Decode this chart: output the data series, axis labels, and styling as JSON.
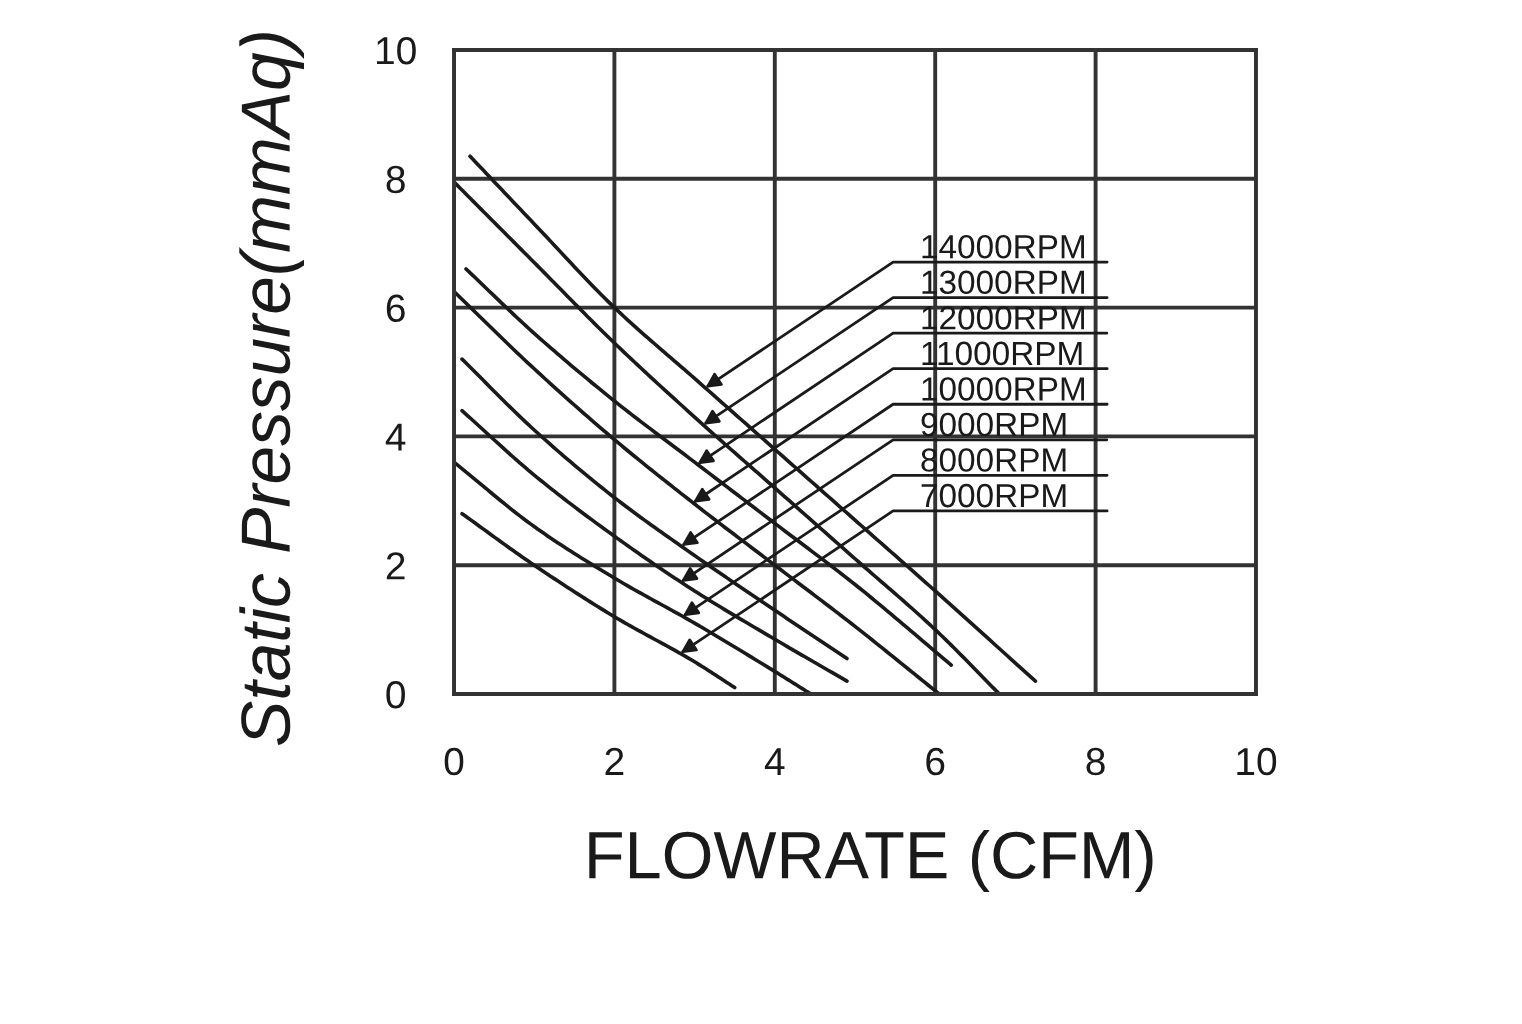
{
  "chart_data": {
    "type": "line",
    "xlabel": "FLOWRATE (CFM)",
    "ylabel": "Static Pressure(mmAq)",
    "xlim": [
      0,
      10
    ],
    "ylim": [
      0,
      10
    ],
    "xticks": [
      0,
      2,
      4,
      6,
      8,
      10
    ],
    "yticks": [
      0,
      2,
      4,
      6,
      8,
      10
    ],
    "grid": true,
    "line_style": "solid",
    "series": [
      {
        "name": "14000RPM",
        "color": "#1a1a1a",
        "x": [
          0.2,
          1,
          2,
          3,
          4,
          5,
          6,
          7.25
        ],
        "values": [
          8.35,
          7.3,
          6.0,
          4.9,
          3.8,
          2.7,
          1.6,
          0.2
        ]
      },
      {
        "name": "13000RPM",
        "color": "#1a1a1a",
        "x": [
          0,
          1,
          2,
          3,
          4,
          5,
          6,
          6.8
        ],
        "values": [
          7.95,
          6.7,
          5.45,
          4.3,
          3.2,
          2.1,
          1.0,
          0
        ]
      },
      {
        "name": "12000RPM",
        "color": "#1a1a1a",
        "x": [
          0.15,
          1,
          2,
          3,
          4,
          5,
          6.2
        ],
        "values": [
          6.6,
          5.6,
          4.55,
          3.6,
          2.65,
          1.7,
          0.45
        ]
      },
      {
        "name": "11000RPM",
        "color": "#1a1a1a",
        "x": [
          0,
          1,
          2,
          3,
          4,
          5,
          6.05
        ],
        "values": [
          6.25,
          5.05,
          3.95,
          2.95,
          2.0,
          1.05,
          0
        ]
      },
      {
        "name": "10000RPM",
        "color": "#1a1a1a",
        "x": [
          0.1,
          1,
          2,
          3,
          4,
          4.9
        ],
        "values": [
          5.2,
          4.1,
          3.05,
          2.15,
          1.3,
          0.55
        ]
      },
      {
        "name": "9000RPM",
        "color": "#1a1a1a",
        "x": [
          0.1,
          1,
          2,
          3,
          4,
          4.9
        ],
        "values": [
          4.4,
          3.4,
          2.45,
          1.6,
          0.85,
          0.2
        ]
      },
      {
        "name": "8000RPM",
        "color": "#1a1a1a",
        "x": [
          0,
          1,
          2,
          3,
          4,
          4.45
        ],
        "values": [
          3.6,
          2.6,
          1.8,
          1.1,
          0.35,
          0
        ]
      },
      {
        "name": "7000RPM",
        "color": "#1a1a1a",
        "x": [
          0.1,
          1,
          2,
          3,
          3.5
        ],
        "values": [
          2.8,
          2.0,
          1.2,
          0.5,
          0.1
        ]
      }
    ]
  }
}
